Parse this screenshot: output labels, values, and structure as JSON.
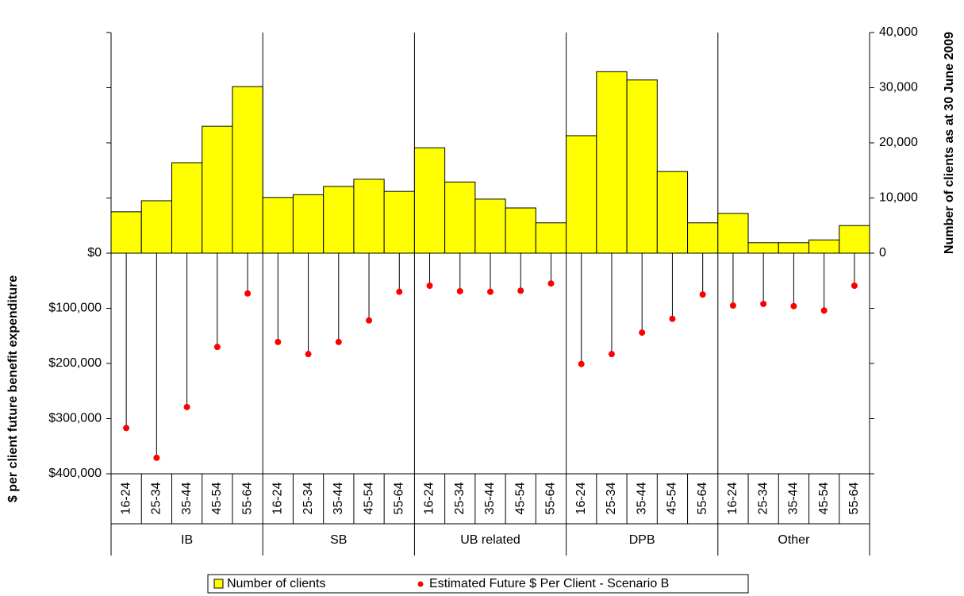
{
  "chart_data": {
    "type": "bar",
    "categories": [
      "16-24",
      "25-34",
      "35-44",
      "45-54",
      "55-64",
      "16-24",
      "25-34",
      "35-44",
      "45-54",
      "55-64",
      "16-24",
      "25-34",
      "35-44",
      "45-54",
      "55-64",
      "16-24",
      "25-34",
      "35-44",
      "45-54",
      "55-64",
      "16-24",
      "25-34",
      "35-44",
      "45-54",
      "55-64"
    ],
    "groups": [
      "IB",
      "SB",
      "UB related",
      "DPB",
      "Other"
    ],
    "y_label": "$ per client future benefit expenditure",
    "y2_label": "Number of clients as at 30 June 2009",
    "ylim": [
      400000,
      -400000
    ],
    "yticks": [
      {
        "value": 0,
        "label": "$0"
      },
      {
        "value": 100000,
        "label": "$100,000"
      },
      {
        "value": 200000,
        "label": "$200,000"
      },
      {
        "value": 300000,
        "label": "$300,000"
      },
      {
        "value": 400000,
        "label": "$400,000"
      }
    ],
    "y2lim": [
      -40000,
      40000
    ],
    "y2ticks": [
      {
        "value": 0,
        "label": "0"
      },
      {
        "value": 10000,
        "label": "10,000"
      },
      {
        "value": 20000,
        "label": "20,000"
      },
      {
        "value": 30000,
        "label": "30,000"
      },
      {
        "value": 40000,
        "label": "40,000"
      }
    ],
    "legend": "bottom",
    "series": [
      {
        "name": "Number of clients",
        "type": "bar",
        "axis": "y2",
        "color": "#ffff00",
        "values": [
          7500,
          9500,
          16400,
          23000,
          30200,
          10100,
          10600,
          12100,
          13400,
          11200,
          19100,
          12900,
          9800,
          8200,
          5500,
          21300,
          32900,
          31400,
          14800,
          5500,
          7200,
          1900,
          1900,
          2400,
          5000
        ]
      },
      {
        "name": "Estimated Future $ Per Client - Scenario B",
        "type": "dot",
        "axis": "y",
        "color": "#ff0000",
        "values": [
          317000,
          371000,
          279000,
          170000,
          73000,
          161000,
          183000,
          161000,
          122000,
          70000,
          59000,
          69000,
          70000,
          68000,
          55000,
          201000,
          183000,
          144000,
          119000,
          75000,
          95000,
          92000,
          96000,
          104000,
          59000
        ]
      }
    ]
  }
}
